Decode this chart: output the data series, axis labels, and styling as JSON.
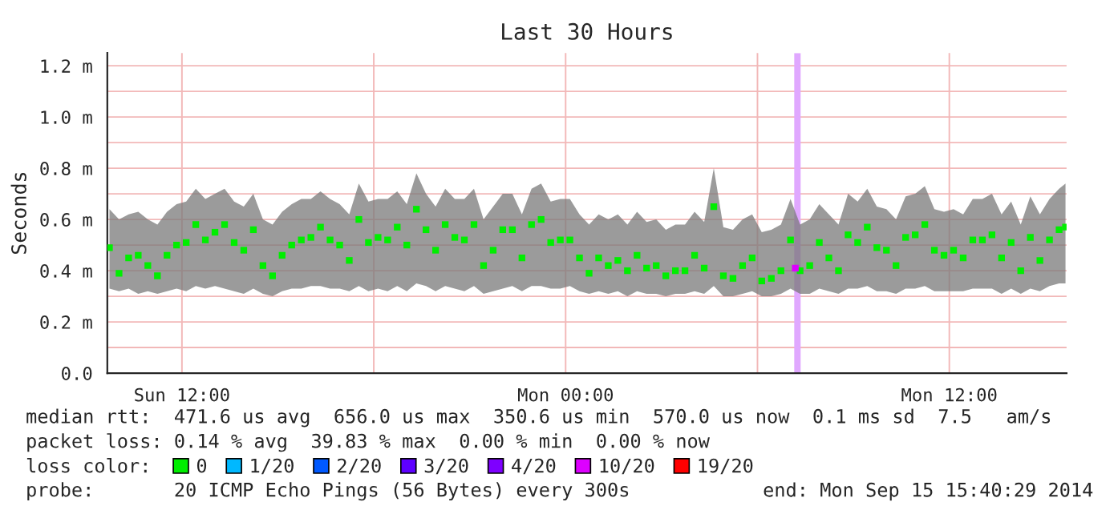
{
  "chart_data": {
    "type": "scatter",
    "title": "Last 30 Hours",
    "ylabel": "Seconds",
    "legend_title": "loss color:",
    "xlim": [
      "2014-09-14T09:40",
      "2014-09-15T15:40"
    ],
    "xticks": [
      {
        "value": "2014-09-14T12:00",
        "label": "Sun 12:00"
      },
      {
        "value": "2014-09-14T18:00",
        "label": null
      },
      {
        "value": "2014-09-15T00:00",
        "label": "Mon 00:00"
      },
      {
        "value": "2014-09-15T06:00",
        "label": null
      },
      {
        "value": "2014-09-15T12:00",
        "label": "Mon 12:00"
      }
    ],
    "ylim": [
      0,
      1.25
    ],
    "yticks": [
      {
        "value": 0,
        "label": "0.0"
      },
      {
        "value": 0.1,
        "label": null
      },
      {
        "value": 0.2,
        "label": "0.2 m"
      },
      {
        "value": 0.3,
        "label": null
      },
      {
        "value": 0.4,
        "label": "0.4 m"
      },
      {
        "value": 0.5,
        "label": null
      },
      {
        "value": 0.6,
        "label": "0.6 m"
      },
      {
        "value": 0.7,
        "label": null
      },
      {
        "value": 0.8,
        "label": "0.8 m"
      },
      {
        "value": 0.9,
        "label": null
      },
      {
        "value": 1.0,
        "label": "1.0 m"
      },
      {
        "value": 1.1,
        "label": null
      },
      {
        "value": 1.2,
        "label": "1.2 m"
      }
    ],
    "grid": true,
    "marker": "square",
    "legend": "bottom",
    "bands": [
      {
        "axis": "x",
        "from": "2014-09-15T07:09",
        "to": "2014-09-15T07:21",
        "color": "#e0a8ff"
      }
    ],
    "series": [
      {
        "name": "0",
        "color": "#00ee00",
        "x": [
          "2014-09-14T09:44",
          "2014-09-14T10:02",
          "2014-09-14T10:20",
          "2014-09-14T10:38",
          "2014-09-14T10:56",
          "2014-09-14T11:14",
          "2014-09-14T11:32",
          "2014-09-14T11:50",
          "2014-09-14T12:08",
          "2014-09-14T12:26",
          "2014-09-14T12:44",
          "2014-09-14T13:02",
          "2014-09-14T13:20",
          "2014-09-14T13:38",
          "2014-09-14T13:56",
          "2014-09-14T14:14",
          "2014-09-14T14:32",
          "2014-09-14T14:50",
          "2014-09-14T15:08",
          "2014-09-14T15:26",
          "2014-09-14T15:44",
          "2014-09-14T16:02",
          "2014-09-14T16:20",
          "2014-09-14T16:38",
          "2014-09-14T16:56",
          "2014-09-14T17:14",
          "2014-09-14T17:32",
          "2014-09-14T17:50",
          "2014-09-14T18:08",
          "2014-09-14T18:26",
          "2014-09-14T18:44",
          "2014-09-14T19:02",
          "2014-09-14T19:20",
          "2014-09-14T19:38",
          "2014-09-14T19:56",
          "2014-09-14T20:14",
          "2014-09-14T20:32",
          "2014-09-14T20:50",
          "2014-09-14T21:08",
          "2014-09-14T21:26",
          "2014-09-14T21:44",
          "2014-09-14T22:02",
          "2014-09-14T22:20",
          "2014-09-14T22:38",
          "2014-09-14T22:56",
          "2014-09-14T23:14",
          "2014-09-14T23:32",
          "2014-09-14T23:50",
          "2014-09-15T00:08",
          "2014-09-15T00:26",
          "2014-09-15T00:44",
          "2014-09-15T01:02",
          "2014-09-15T01:20",
          "2014-09-15T01:38",
          "2014-09-15T01:56",
          "2014-09-15T02:14",
          "2014-09-15T02:32",
          "2014-09-15T02:50",
          "2014-09-15T03:08",
          "2014-09-15T03:26",
          "2014-09-15T03:44",
          "2014-09-15T04:02",
          "2014-09-15T04:20",
          "2014-09-15T04:38",
          "2014-09-15T04:56",
          "2014-09-15T05:14",
          "2014-09-15T05:32",
          "2014-09-15T05:50",
          "2014-09-15T06:08",
          "2014-09-15T06:26",
          "2014-09-15T06:44",
          "2014-09-15T07:02",
          "2014-09-15T07:20",
          "2014-09-15T07:38",
          "2014-09-15T07:56",
          "2014-09-15T08:14",
          "2014-09-15T08:32",
          "2014-09-15T08:50",
          "2014-09-15T09:08",
          "2014-09-15T09:26",
          "2014-09-15T09:44",
          "2014-09-15T10:02",
          "2014-09-15T10:20",
          "2014-09-15T10:38",
          "2014-09-15T10:56",
          "2014-09-15T11:14",
          "2014-09-15T11:32",
          "2014-09-15T11:50",
          "2014-09-15T12:08",
          "2014-09-15T12:26",
          "2014-09-15T12:44",
          "2014-09-15T13:02",
          "2014-09-15T13:20",
          "2014-09-15T13:38",
          "2014-09-15T13:56",
          "2014-09-15T14:14",
          "2014-09-15T14:32",
          "2014-09-15T14:50",
          "2014-09-15T15:08",
          "2014-09-15T15:26",
          "2014-09-15T15:38"
        ],
        "values": [
          0.49,
          0.39,
          0.45,
          0.46,
          0.42,
          0.38,
          0.46,
          0.5,
          0.51,
          0.58,
          0.52,
          0.55,
          0.58,
          0.51,
          0.48,
          0.56,
          0.42,
          0.38,
          0.46,
          0.5,
          0.52,
          0.53,
          0.57,
          0.52,
          0.5,
          0.44,
          0.6,
          0.51,
          0.53,
          0.52,
          0.57,
          0.5,
          0.64,
          0.56,
          0.48,
          0.58,
          0.53,
          0.52,
          0.58,
          0.42,
          0.48,
          0.56,
          0.56,
          0.45,
          0.58,
          0.6,
          0.51,
          0.52,
          0.52,
          0.45,
          0.39,
          0.45,
          0.42,
          0.44,
          0.4,
          0.46,
          0.41,
          0.42,
          0.38,
          0.4,
          0.4,
          0.46,
          0.41,
          0.65,
          0.38,
          0.37,
          0.42,
          0.45,
          0.36,
          0.37,
          0.4,
          0.52,
          0.4,
          0.42,
          0.51,
          0.45,
          0.4,
          0.54,
          0.51,
          0.57,
          0.49,
          0.48,
          0.42,
          0.53,
          0.54,
          0.58,
          0.48,
          0.46,
          0.48,
          0.45,
          0.52,
          0.52,
          0.54,
          0.45,
          0.51,
          0.4,
          0.53,
          0.44,
          0.52,
          0.56,
          0.57
        ],
        "lower": [
          0.33,
          0.32,
          0.33,
          0.31,
          0.32,
          0.31,
          0.32,
          0.33,
          0.32,
          0.34,
          0.33,
          0.34,
          0.33,
          0.32,
          0.31,
          0.33,
          0.31,
          0.3,
          0.32,
          0.33,
          0.33,
          0.34,
          0.34,
          0.33,
          0.33,
          0.32,
          0.34,
          0.32,
          0.33,
          0.32,
          0.34,
          0.32,
          0.35,
          0.34,
          0.32,
          0.34,
          0.33,
          0.32,
          0.34,
          0.31,
          0.32,
          0.33,
          0.34,
          0.32,
          0.34,
          0.34,
          0.33,
          0.33,
          0.34,
          0.32,
          0.31,
          0.32,
          0.31,
          0.32,
          0.3,
          0.32,
          0.31,
          0.31,
          0.3,
          0.31,
          0.31,
          0.32,
          0.31,
          0.34,
          0.3,
          0.3,
          0.31,
          0.32,
          0.3,
          0.3,
          0.31,
          0.33,
          0.31,
          0.31,
          0.33,
          0.32,
          0.31,
          0.33,
          0.33,
          0.34,
          0.32,
          0.32,
          0.31,
          0.33,
          0.33,
          0.34,
          0.32,
          0.32,
          0.32,
          0.32,
          0.33,
          0.33,
          0.33,
          0.31,
          0.33,
          0.31,
          0.33,
          0.32,
          0.34,
          0.35,
          0.35
        ],
        "upper": [
          0.64,
          0.6,
          0.62,
          0.63,
          0.6,
          0.58,
          0.63,
          0.66,
          0.67,
          0.72,
          0.68,
          0.7,
          0.72,
          0.67,
          0.65,
          0.7,
          0.6,
          0.58,
          0.63,
          0.66,
          0.68,
          0.68,
          0.71,
          0.68,
          0.66,
          0.62,
          0.74,
          0.67,
          0.68,
          0.68,
          0.71,
          0.66,
          0.78,
          0.7,
          0.65,
          0.72,
          0.68,
          0.68,
          0.72,
          0.6,
          0.65,
          0.7,
          0.7,
          0.62,
          0.72,
          0.74,
          0.67,
          0.68,
          0.68,
          0.62,
          0.58,
          0.62,
          0.6,
          0.62,
          0.58,
          0.63,
          0.59,
          0.6,
          0.56,
          0.58,
          0.58,
          0.63,
          0.59,
          0.8,
          0.57,
          0.56,
          0.6,
          0.62,
          0.55,
          0.56,
          0.58,
          0.68,
          0.58,
          0.6,
          0.66,
          0.62,
          0.58,
          0.7,
          0.67,
          0.72,
          0.65,
          0.64,
          0.6,
          0.69,
          0.7,
          0.73,
          0.64,
          0.63,
          0.64,
          0.62,
          0.68,
          0.68,
          0.7,
          0.62,
          0.67,
          0.58,
          0.69,
          0.62,
          0.68,
          0.72,
          0.74
        ]
      },
      {
        "name": "1/20",
        "color": "#00b8ff"
      },
      {
        "name": "2/20",
        "color": "#0059ff"
      },
      {
        "name": "3/20",
        "color": "#5e00ff"
      },
      {
        "name": "4/20",
        "color": "#7e00ff"
      },
      {
        "name": "10/20",
        "color": "#dd00ff",
        "x": [
          "2014-09-15T07:11"
        ],
        "values": [
          0.41
        ]
      },
      {
        "name": "19/20",
        "color": "#ff0000"
      }
    ],
    "annotations": [
      "median rtt:  471.6 us avg  656.0 us max  350.6 us min  570.0 us now  0.1 ms sd  7.5   am/s",
      "packet loss: 0.14 % avg  39.83 % max  0.00 % min  0.00 % now",
      "probe:       20 ICMP Echo Pings (56 Bytes) every 300s",
      "end: Mon Sep 15 15:40:29 2014"
    ]
  }
}
